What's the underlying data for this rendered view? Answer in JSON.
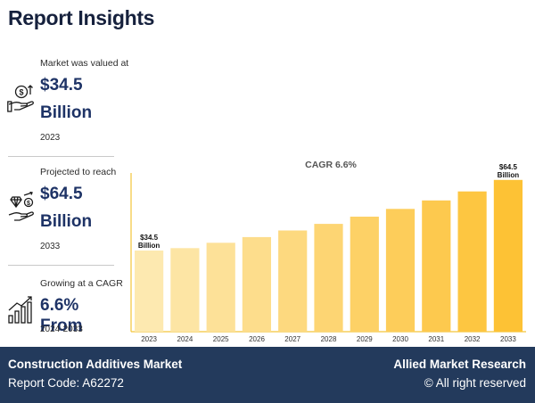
{
  "header": {
    "title": "Report Insights"
  },
  "stats": [
    {
      "caption": "Market was valued at",
      "value": "$34.5",
      "unit": "Billion",
      "period": "2023",
      "icon": "money-hand-icon"
    },
    {
      "caption": "Projected to reach",
      "value": "$64.5",
      "unit": "Billion",
      "period": "2033",
      "icon": "diamond-hand-icon"
    },
    {
      "caption": "Growing at a CAGR",
      "value": "6.6% From",
      "unit": "",
      "period": "2024-2033",
      "icon": "growth-bars-icon"
    }
  ],
  "chart_data": {
    "type": "bar",
    "title": "CAGR 6.6%",
    "xlabel": "",
    "ylabel": "",
    "categories": [
      "2023",
      "2024",
      "2025",
      "2026",
      "2027",
      "2028",
      "2029",
      "2030",
      "2031",
      "2032",
      "2033"
    ],
    "values": [
      34.5,
      35.5,
      37.8,
      40.2,
      43.0,
      45.8,
      48.9,
      52.2,
      55.8,
      59.6,
      64.5
    ],
    "ylim": [
      0,
      72
    ],
    "annotations": [
      {
        "index": 0,
        "line1": "$34.5",
        "line2": "Billion"
      },
      {
        "index": 10,
        "line1": "$64.5",
        "line2": "Billion"
      }
    ],
    "colors": [
      "#fde9b0",
      "#fde5a4",
      "#fde198",
      "#fddd8c",
      "#fdd97f",
      "#fdd573",
      "#fdd166",
      "#fdcd5a",
      "#fdc94e",
      "#fdc641",
      "#fdc235"
    ],
    "axis_color": "#f3c53a",
    "grid": false
  },
  "footer": {
    "market": "Construction Additives Market",
    "code": "Report Code: A62272",
    "brand": "Allied Market Research",
    "rights": "© All right reserved"
  },
  "theme": {
    "navy": "#233a5c",
    "accent": "#fdc235"
  }
}
